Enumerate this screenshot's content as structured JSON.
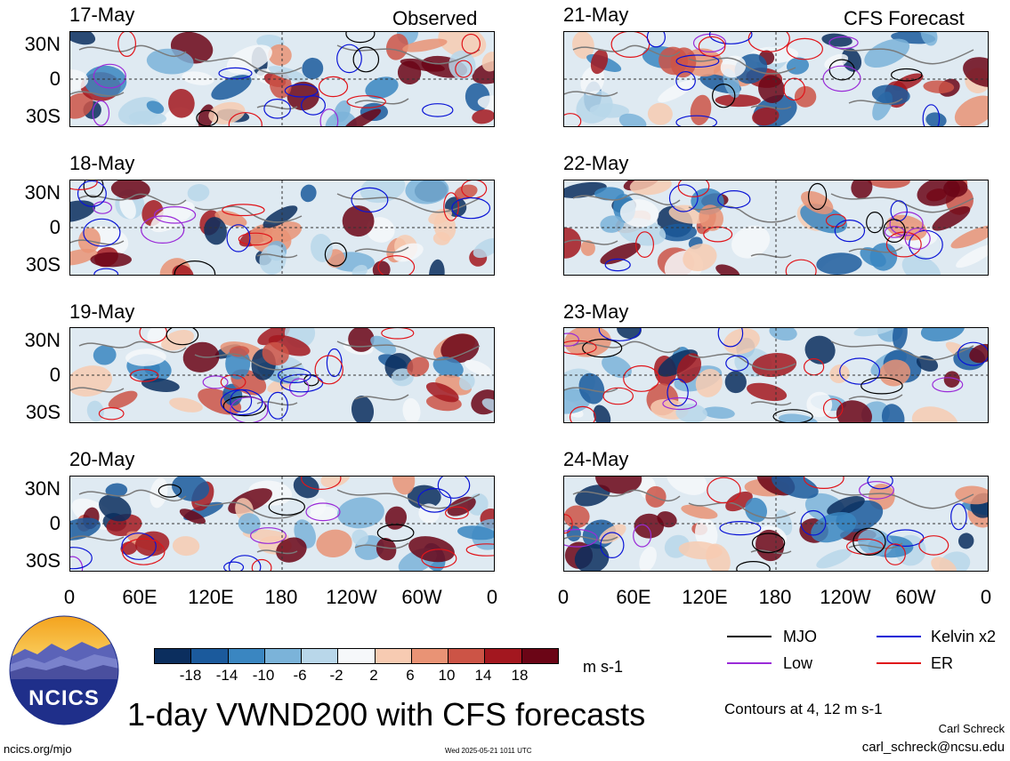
{
  "panel_labels": {
    "observed": "Observed",
    "forecast": "CFS Forecast"
  },
  "observed_dates": [
    "17-May",
    "18-May",
    "19-May",
    "20-May"
  ],
  "forecast_dates": [
    "21-May",
    "22-May",
    "23-May",
    "24-May"
  ],
  "lat_labels": [
    "30N",
    "0",
    "30S"
  ],
  "lon_labels": [
    "0",
    "60E",
    "120E",
    "180",
    "120W",
    "60W",
    "0"
  ],
  "colorbar": {
    "unit": "m s-1",
    "labels": [
      "-18",
      "-14",
      "-10",
      "-6",
      "-2",
      "2",
      "6",
      "10",
      "14",
      "18"
    ],
    "colors": [
      "#0b2e5e",
      "#1b5a9c",
      "#3a86c1",
      "#7bb3d9",
      "#b9d7ea",
      "#f6f8fa",
      "#f7cbb2",
      "#e99375",
      "#cc5446",
      "#a3171f",
      "#6b0516"
    ]
  },
  "legend": {
    "mjo": "MJO",
    "kelvin": "Kelvin x2",
    "low": "Low",
    "er": "ER",
    "colors": {
      "mjo": "#000000",
      "kelvin": "#0a14d6",
      "low": "#9a2bd8",
      "er": "#e0141a"
    }
  },
  "title": "1-day VWND200 with CFS forecasts",
  "contour_note": "Contours at 4, 12 m s-1",
  "author": "Carl Schreck",
  "email": "carl_schreck@ncsu.edu",
  "site": "ncics.org/mjo",
  "timestamp": "Wed 2025-05-21 1011 UTC",
  "logo_text": "NCICS"
}
